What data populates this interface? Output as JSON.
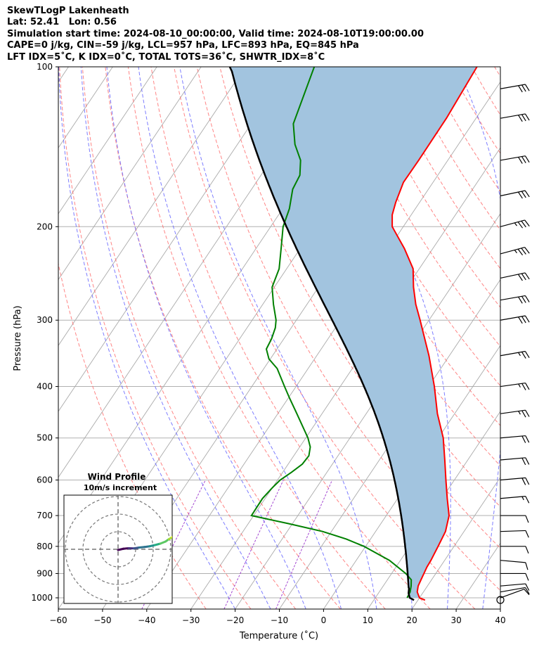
{
  "header": {
    "line1": "SkewTLogP Lakenheath",
    "line2": "Lat: 52.41   Lon: 0.56",
    "line3": "Simulation start time: 2024-08-10_00:00:00, Valid time: 2024-08-10T19:00:00.00",
    "line4": "CAPE=0 j/kg, CIN=-59 j/kg, LCL=957 hPa, LFC=893 hPa, EQ=845 hPa",
    "line5": "LFT IDX=5˚C, K IDX=0˚C, TOTAL TOTS=36˚C, SHWTR_IDX=8˚C"
  },
  "chart_data": {
    "type": "skew-t",
    "xlabel": "Temperature (˚C)",
    "ylabel": "Pressure (hPa)",
    "xlim": [
      -60,
      40
    ],
    "ylim": [
      1050,
      100
    ],
    "x_ticks": [
      -60,
      -50,
      -40,
      -30,
      -20,
      -10,
      0,
      10,
      20,
      30,
      40
    ],
    "x_tick_labels": [
      "−60",
      "−50",
      "−40",
      "−30",
      "−20",
      "−10",
      "0",
      "10",
      "20",
      "30",
      "40"
    ],
    "y_ticks": [
      1000,
      900,
      800,
      700,
      600,
      500,
      400,
      300,
      200,
      100
    ],
    "y_tick_labels": [
      "1000",
      "900",
      "800",
      "700",
      "600",
      "500",
      "400",
      "300",
      "200",
      "100"
    ],
    "grid": true,
    "colors": {
      "temperature": "#ff0000",
      "dewpoint": "#008000",
      "parcel": "#000000",
      "cape_fill": "#a2c4df",
      "dry_adiabat": "#ff6666",
      "moist_adiabat": "#6666ff",
      "mixing_ratio": "#9932cc",
      "isotherm": "#aaaaaa"
    },
    "series": [
      {
        "key": "temperature",
        "points": [
          [
            1010,
            21.6
          ],
          [
            1000,
            20.0
          ],
          [
            975,
            18.6
          ],
          [
            950,
            17.9
          ],
          [
            925,
            17.6
          ],
          [
            900,
            17.3
          ],
          [
            875,
            17.0
          ],
          [
            850,
            16.9
          ],
          [
            800,
            16.4
          ],
          [
            750,
            15.8
          ],
          [
            700,
            14.2
          ],
          [
            650,
            11.2
          ],
          [
            600,
            8.1
          ],
          [
            550,
            4.8
          ],
          [
            500,
            1.1
          ],
          [
            450,
            -3.9
          ],
          [
            400,
            -8.7
          ],
          [
            350,
            -14.6
          ],
          [
            300,
            -22.0
          ],
          [
            280,
            -25.4
          ],
          [
            260,
            -28.5
          ],
          [
            240,
            -31.4
          ],
          [
            220,
            -36.4
          ],
          [
            200,
            -42.5
          ],
          [
            190,
            -44.3
          ],
          [
            180,
            -45.4
          ],
          [
            165,
            -46.7
          ],
          [
            150,
            -46.6
          ],
          [
            125,
            -46.7
          ],
          [
            100,
            -47.6
          ]
        ]
      },
      {
        "key": "dewpoint",
        "points": [
          [
            1000,
            17.2
          ],
          [
            975,
            17.0
          ],
          [
            950,
            16.3
          ],
          [
            925,
            15.4
          ],
          [
            900,
            13.2
          ],
          [
            850,
            7.5
          ],
          [
            800,
            -0.4
          ],
          [
            775,
            -5.5
          ],
          [
            750,
            -12.0
          ],
          [
            725,
            -20.8
          ],
          [
            700,
            -30.5
          ],
          [
            650,
            -30.6
          ],
          [
            620,
            -30.0
          ],
          [
            600,
            -29.4
          ],
          [
            580,
            -28.0
          ],
          [
            560,
            -26.8
          ],
          [
            540,
            -26.6
          ],
          [
            520,
            -27.6
          ],
          [
            500,
            -29.5
          ],
          [
            450,
            -35.7
          ],
          [
            420,
            -39.8
          ],
          [
            400,
            -42.6
          ],
          [
            370,
            -47.0
          ],
          [
            355,
            -50.3
          ],
          [
            340,
            -52.4
          ],
          [
            325,
            -52.8
          ],
          [
            310,
            -53.6
          ],
          [
            300,
            -54.6
          ],
          [
            280,
            -57.6
          ],
          [
            260,
            -60.5
          ],
          [
            240,
            -61.7
          ],
          [
            220,
            -64.3
          ],
          [
            200,
            -67.2
          ],
          [
            185,
            -68.5
          ],
          [
            170,
            -70.7
          ],
          [
            160,
            -71.2
          ],
          [
            150,
            -73.3
          ],
          [
            140,
            -77.0
          ],
          [
            128,
            -80.5
          ],
          [
            100,
            -84.4
          ]
        ]
      },
      {
        "key": "parcel",
        "points": [
          [
            1010,
            19.1
          ],
          [
            1000,
            17.8
          ],
          [
            980,
            16.8
          ],
          [
            960,
            16.2
          ],
          [
            957,
            16.0
          ]
        ]
      }
    ],
    "wind_barbs": [
      {
        "p": 1000,
        "speed": 10,
        "dir": 250
      },
      {
        "p": 975,
        "speed": 10,
        "dir": 260
      },
      {
        "p": 950,
        "speed": 10,
        "dir": 265
      },
      {
        "p": 900,
        "speed": 10,
        "dir": 270
      },
      {
        "p": 850,
        "speed": 10,
        "dir": 275
      },
      {
        "p": 800,
        "speed": 10,
        "dir": 270
      },
      {
        "p": 750,
        "speed": 10,
        "dir": 268
      },
      {
        "p": 700,
        "speed": 10,
        "dir": 270
      },
      {
        "p": 650,
        "speed": 15,
        "dir": 265
      },
      {
        "p": 600,
        "speed": 20,
        "dir": 265
      },
      {
        "p": 550,
        "speed": 20,
        "dir": 265
      },
      {
        "p": 500,
        "speed": 20,
        "dir": 265
      },
      {
        "p": 450,
        "speed": 25,
        "dir": 262
      },
      {
        "p": 400,
        "speed": 25,
        "dir": 262
      },
      {
        "p": 350,
        "speed": 25,
        "dir": 260
      },
      {
        "p": 300,
        "speed": 30,
        "dir": 260
      },
      {
        "p": 275,
        "speed": 30,
        "dir": 260
      },
      {
        "p": 250,
        "speed": 30,
        "dir": 258
      },
      {
        "p": 225,
        "speed": 35,
        "dir": 255
      },
      {
        "p": 200,
        "speed": 35,
        "dir": 255
      },
      {
        "p": 175,
        "speed": 30,
        "dir": 258
      },
      {
        "p": 150,
        "speed": 30,
        "dir": 260
      },
      {
        "p": 125,
        "speed": 30,
        "dir": 260
      },
      {
        "p": 110,
        "speed": 30,
        "dir": 260
      }
    ],
    "hodograph": {
      "title": "Wind Profile",
      "subtitle": "10m/s increment",
      "rings_ms": [
        10,
        20,
        30
      ],
      "points": [
        [
          0.0,
          -0.4
        ],
        [
          3.0,
          0.3
        ],
        [
          6.0,
          0.6
        ],
        [
          9.0,
          0.5
        ],
        [
          12.0,
          1.0
        ],
        [
          15.0,
          1.3
        ],
        [
          18.0,
          1.7
        ],
        [
          21.0,
          2.4
        ],
        [
          24.0,
          3.2
        ],
        [
          27.0,
          4.4
        ],
        [
          29.0,
          5.8
        ],
        [
          31.0,
          7.0
        ],
        [
          32.0,
          7.6
        ]
      ]
    }
  }
}
